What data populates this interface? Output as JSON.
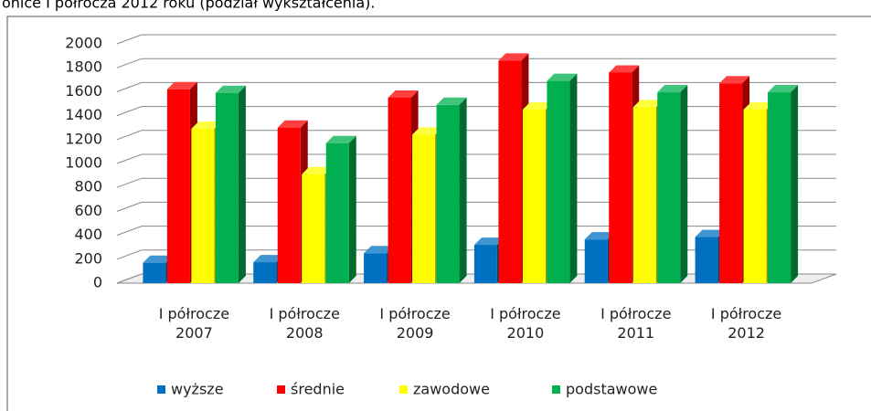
{
  "chart_data": {
    "type": "bar3d",
    "title": "onice I półrocza 2012 roku (podział wykształcenia).",
    "categories": [
      "I półrocze 2007",
      "I półrocze 2008",
      "I półrocze 2009",
      "I półrocze 2010",
      "I półrocze 2011",
      "I półrocze 2012"
    ],
    "series": [
      {
        "name": "wyższe",
        "color": "#0070c0",
        "values": [
          170,
          175,
          250,
          320,
          365,
          385
        ]
      },
      {
        "name": "średnie",
        "color": "#ff0000",
        "values": [
          1620,
          1300,
          1550,
          1860,
          1760,
          1670
        ]
      },
      {
        "name": "zawodowe",
        "color": "#ffff00",
        "values": [
          1290,
          910,
          1240,
          1450,
          1470,
          1450
        ]
      },
      {
        "name": "podstawowe",
        "color": "#00b050",
        "values": [
          1590,
          1170,
          1490,
          1690,
          1595,
          1595
        ]
      }
    ],
    "ylim": [
      0,
      2000
    ],
    "yticks": [
      0,
      200,
      400,
      600,
      800,
      1000,
      1200,
      1400,
      1600,
      1800,
      2000
    ],
    "grid": true,
    "legend": "bottom"
  }
}
